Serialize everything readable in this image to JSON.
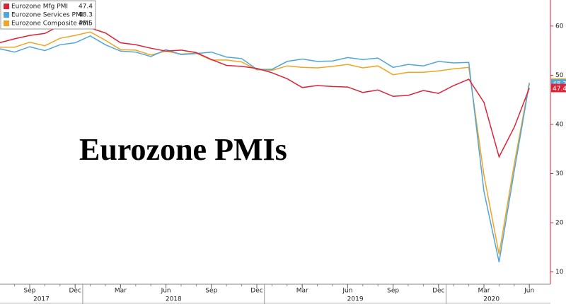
{
  "chart_data": {
    "type": "line",
    "annotation": "Eurozone PMIs",
    "x": [
      "2017-07",
      "2017-08",
      "2017-09",
      "2017-10",
      "2017-11",
      "2017-12",
      "2018-01",
      "2018-02",
      "2018-03",
      "2018-04",
      "2018-05",
      "2018-06",
      "2018-07",
      "2018-08",
      "2018-09",
      "2018-10",
      "2018-11",
      "2018-12",
      "2019-01",
      "2019-02",
      "2019-03",
      "2019-04",
      "2019-05",
      "2019-06",
      "2019-07",
      "2019-08",
      "2019-09",
      "2019-10",
      "2019-11",
      "2019-12",
      "2020-01",
      "2020-02",
      "2020-03",
      "2020-04",
      "2020-05",
      "2020-06"
    ],
    "xticks": [
      {
        "value": "2017-09",
        "label": "Sep"
      },
      {
        "value": "2017-12",
        "label": "Dec"
      },
      {
        "value": "2018-03",
        "label": "Mar"
      },
      {
        "value": "2018-06",
        "label": "Jun"
      },
      {
        "value": "2018-09",
        "label": "Sep"
      },
      {
        "value": "2018-12",
        "label": "Dec"
      },
      {
        "value": "2019-03",
        "label": "Mar"
      },
      {
        "value": "2019-06",
        "label": "Jun"
      },
      {
        "value": "2019-09",
        "label": "Sep"
      },
      {
        "value": "2019-12",
        "label": "Dec"
      },
      {
        "value": "2020-03",
        "label": "Mar"
      },
      {
        "value": "2020-06",
        "label": "Jun"
      }
    ],
    "years": [
      "2017",
      "2018",
      "2019",
      "2020"
    ],
    "series": [
      {
        "name": "Eurozone Mfg PMI",
        "color": "#dc2339",
        "values": [
          56.6,
          57.4,
          58.1,
          58.5,
          60.1,
          60.6,
          59.6,
          58.6,
          56.6,
          56.2,
          55.5,
          54.9,
          55.1,
          54.6,
          53.2,
          52.0,
          51.8,
          51.4,
          50.5,
          49.3,
          47.5,
          47.9,
          47.7,
          47.6,
          46.5,
          47.0,
          45.7,
          45.9,
          46.9,
          46.3,
          47.9,
          49.2,
          44.5,
          33.4,
          39.4,
          47.4
        ]
      },
      {
        "name": "Eurozone Services PMI",
        "color": "#4ea6dc",
        "values": [
          55.4,
          54.7,
          55.8,
          55.0,
          56.2,
          56.6,
          58.0,
          56.2,
          54.9,
          54.7,
          53.8,
          55.2,
          54.2,
          54.4,
          54.7,
          53.7,
          53.4,
          51.2,
          51.2,
          52.8,
          53.3,
          52.8,
          52.9,
          53.6,
          53.2,
          53.5,
          51.6,
          52.2,
          51.9,
          52.8,
          52.5,
          52.6,
          26.4,
          12.0,
          30.5,
          48.3
        ]
      },
      {
        "name": "Eurozone Composite PMI",
        "color": "#f0a422",
        "values": [
          55.7,
          55.7,
          56.7,
          56.0,
          57.5,
          58.1,
          58.8,
          57.1,
          55.2,
          55.1,
          54.1,
          54.9,
          54.3,
          54.5,
          53.1,
          53.1,
          52.7,
          51.1,
          51.0,
          51.9,
          51.6,
          51.5,
          51.8,
          52.2,
          51.5,
          51.9,
          50.1,
          50.6,
          50.6,
          50.9,
          51.3,
          51.6,
          29.7,
          13.6,
          31.9,
          48.5
        ]
      }
    ],
    "ylim": [
      7.5,
      65.3
    ],
    "yticks": [
      10,
      20,
      30,
      40,
      50,
      60
    ],
    "axis_color": "#dc2339"
  }
}
